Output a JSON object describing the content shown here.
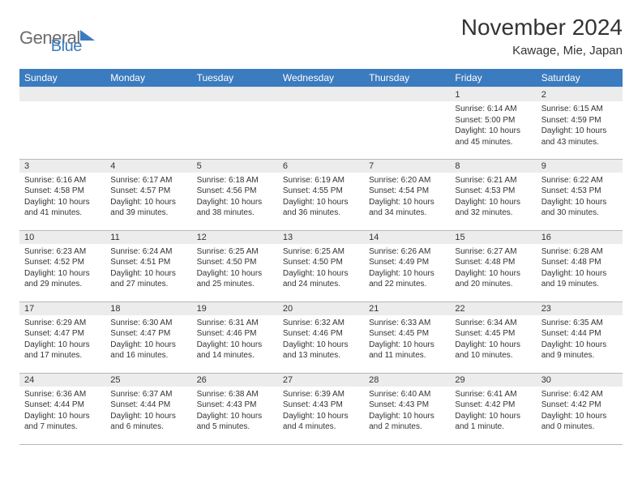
{
  "logo": {
    "text1": "General",
    "text2": "Blue"
  },
  "title": "November 2024",
  "location": "Kawage, Mie, Japan",
  "colors": {
    "header_bg": "#3b7bbf",
    "header_text": "#ffffff",
    "daynum_bg": "#ececec",
    "row_border": "#b8b8b8",
    "logo_gray": "#6c6c6c",
    "logo_blue": "#3b7bbf"
  },
  "weekdays": [
    "Sunday",
    "Monday",
    "Tuesday",
    "Wednesday",
    "Thursday",
    "Friday",
    "Saturday"
  ],
  "weeks": [
    [
      null,
      null,
      null,
      null,
      null,
      {
        "n": "1",
        "sr": "6:14 AM",
        "ss": "5:00 PM",
        "dl": "10 hours and 45 minutes."
      },
      {
        "n": "2",
        "sr": "6:15 AM",
        "ss": "4:59 PM",
        "dl": "10 hours and 43 minutes."
      }
    ],
    [
      {
        "n": "3",
        "sr": "6:16 AM",
        "ss": "4:58 PM",
        "dl": "10 hours and 41 minutes."
      },
      {
        "n": "4",
        "sr": "6:17 AM",
        "ss": "4:57 PM",
        "dl": "10 hours and 39 minutes."
      },
      {
        "n": "5",
        "sr": "6:18 AM",
        "ss": "4:56 PM",
        "dl": "10 hours and 38 minutes."
      },
      {
        "n": "6",
        "sr": "6:19 AM",
        "ss": "4:55 PM",
        "dl": "10 hours and 36 minutes."
      },
      {
        "n": "7",
        "sr": "6:20 AM",
        "ss": "4:54 PM",
        "dl": "10 hours and 34 minutes."
      },
      {
        "n": "8",
        "sr": "6:21 AM",
        "ss": "4:53 PM",
        "dl": "10 hours and 32 minutes."
      },
      {
        "n": "9",
        "sr": "6:22 AM",
        "ss": "4:53 PM",
        "dl": "10 hours and 30 minutes."
      }
    ],
    [
      {
        "n": "10",
        "sr": "6:23 AM",
        "ss": "4:52 PM",
        "dl": "10 hours and 29 minutes."
      },
      {
        "n": "11",
        "sr": "6:24 AM",
        "ss": "4:51 PM",
        "dl": "10 hours and 27 minutes."
      },
      {
        "n": "12",
        "sr": "6:25 AM",
        "ss": "4:50 PM",
        "dl": "10 hours and 25 minutes."
      },
      {
        "n": "13",
        "sr": "6:25 AM",
        "ss": "4:50 PM",
        "dl": "10 hours and 24 minutes."
      },
      {
        "n": "14",
        "sr": "6:26 AM",
        "ss": "4:49 PM",
        "dl": "10 hours and 22 minutes."
      },
      {
        "n": "15",
        "sr": "6:27 AM",
        "ss": "4:48 PM",
        "dl": "10 hours and 20 minutes."
      },
      {
        "n": "16",
        "sr": "6:28 AM",
        "ss": "4:48 PM",
        "dl": "10 hours and 19 minutes."
      }
    ],
    [
      {
        "n": "17",
        "sr": "6:29 AM",
        "ss": "4:47 PM",
        "dl": "10 hours and 17 minutes."
      },
      {
        "n": "18",
        "sr": "6:30 AM",
        "ss": "4:47 PM",
        "dl": "10 hours and 16 minutes."
      },
      {
        "n": "19",
        "sr": "6:31 AM",
        "ss": "4:46 PM",
        "dl": "10 hours and 14 minutes."
      },
      {
        "n": "20",
        "sr": "6:32 AM",
        "ss": "4:46 PM",
        "dl": "10 hours and 13 minutes."
      },
      {
        "n": "21",
        "sr": "6:33 AM",
        "ss": "4:45 PM",
        "dl": "10 hours and 11 minutes."
      },
      {
        "n": "22",
        "sr": "6:34 AM",
        "ss": "4:45 PM",
        "dl": "10 hours and 10 minutes."
      },
      {
        "n": "23",
        "sr": "6:35 AM",
        "ss": "4:44 PM",
        "dl": "10 hours and 9 minutes."
      }
    ],
    [
      {
        "n": "24",
        "sr": "6:36 AM",
        "ss": "4:44 PM",
        "dl": "10 hours and 7 minutes."
      },
      {
        "n": "25",
        "sr": "6:37 AM",
        "ss": "4:44 PM",
        "dl": "10 hours and 6 minutes."
      },
      {
        "n": "26",
        "sr": "6:38 AM",
        "ss": "4:43 PM",
        "dl": "10 hours and 5 minutes."
      },
      {
        "n": "27",
        "sr": "6:39 AM",
        "ss": "4:43 PM",
        "dl": "10 hours and 4 minutes."
      },
      {
        "n": "28",
        "sr": "6:40 AM",
        "ss": "4:43 PM",
        "dl": "10 hours and 2 minutes."
      },
      {
        "n": "29",
        "sr": "6:41 AM",
        "ss": "4:42 PM",
        "dl": "10 hours and 1 minute."
      },
      {
        "n": "30",
        "sr": "6:42 AM",
        "ss": "4:42 PM",
        "dl": "10 hours and 0 minutes."
      }
    ]
  ],
  "labels": {
    "sunrise": "Sunrise:",
    "sunset": "Sunset:",
    "daylight": "Daylight:"
  }
}
